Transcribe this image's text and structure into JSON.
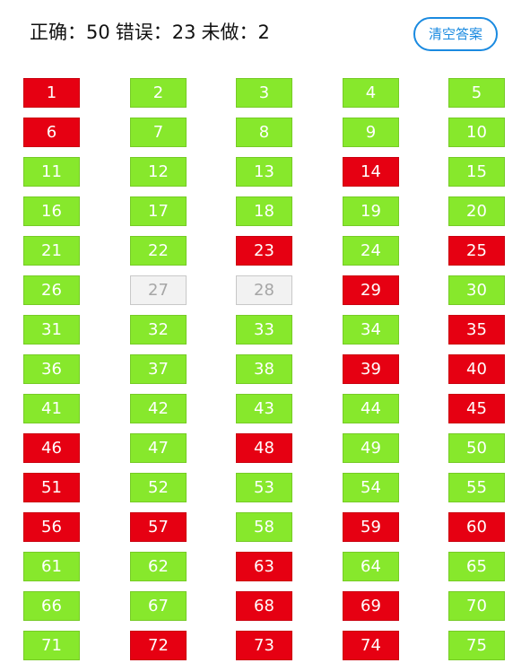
{
  "header": {
    "correct_label": "正确：",
    "correct_count": "50",
    "wrong_label": "错误：",
    "wrong_count": "23",
    "undone_label": "未做：",
    "undone_count": "2",
    "clear_button_label": "清空答案"
  },
  "colors": {
    "correct": "#87e82c",
    "wrong": "#e60012",
    "undone": "#f2f2f2",
    "accent": "#1a8ae0"
  },
  "questions": [
    {
      "num": "1",
      "status": "wrong"
    },
    {
      "num": "2",
      "status": "correct"
    },
    {
      "num": "3",
      "status": "correct"
    },
    {
      "num": "4",
      "status": "correct"
    },
    {
      "num": "5",
      "status": "correct"
    },
    {
      "num": "6",
      "status": "wrong"
    },
    {
      "num": "7",
      "status": "correct"
    },
    {
      "num": "8",
      "status": "correct"
    },
    {
      "num": "9",
      "status": "correct"
    },
    {
      "num": "10",
      "status": "correct"
    },
    {
      "num": "11",
      "status": "correct"
    },
    {
      "num": "12",
      "status": "correct"
    },
    {
      "num": "13",
      "status": "correct"
    },
    {
      "num": "14",
      "status": "wrong"
    },
    {
      "num": "15",
      "status": "correct"
    },
    {
      "num": "16",
      "status": "correct"
    },
    {
      "num": "17",
      "status": "correct"
    },
    {
      "num": "18",
      "status": "correct"
    },
    {
      "num": "19",
      "status": "correct"
    },
    {
      "num": "20",
      "status": "correct"
    },
    {
      "num": "21",
      "status": "correct"
    },
    {
      "num": "22",
      "status": "correct"
    },
    {
      "num": "23",
      "status": "wrong"
    },
    {
      "num": "24",
      "status": "correct"
    },
    {
      "num": "25",
      "status": "wrong"
    },
    {
      "num": "26",
      "status": "correct"
    },
    {
      "num": "27",
      "status": "undone"
    },
    {
      "num": "28",
      "status": "undone"
    },
    {
      "num": "29",
      "status": "wrong"
    },
    {
      "num": "30",
      "status": "correct"
    },
    {
      "num": "31",
      "status": "correct"
    },
    {
      "num": "32",
      "status": "correct"
    },
    {
      "num": "33",
      "status": "correct"
    },
    {
      "num": "34",
      "status": "correct"
    },
    {
      "num": "35",
      "status": "wrong"
    },
    {
      "num": "36",
      "status": "correct"
    },
    {
      "num": "37",
      "status": "correct"
    },
    {
      "num": "38",
      "status": "correct"
    },
    {
      "num": "39",
      "status": "wrong"
    },
    {
      "num": "40",
      "status": "wrong"
    },
    {
      "num": "41",
      "status": "correct"
    },
    {
      "num": "42",
      "status": "correct"
    },
    {
      "num": "43",
      "status": "correct"
    },
    {
      "num": "44",
      "status": "correct"
    },
    {
      "num": "45",
      "status": "wrong"
    },
    {
      "num": "46",
      "status": "wrong"
    },
    {
      "num": "47",
      "status": "correct"
    },
    {
      "num": "48",
      "status": "wrong"
    },
    {
      "num": "49",
      "status": "correct"
    },
    {
      "num": "50",
      "status": "correct"
    },
    {
      "num": "51",
      "status": "wrong"
    },
    {
      "num": "52",
      "status": "correct"
    },
    {
      "num": "53",
      "status": "correct"
    },
    {
      "num": "54",
      "status": "correct"
    },
    {
      "num": "55",
      "status": "correct"
    },
    {
      "num": "56",
      "status": "wrong"
    },
    {
      "num": "57",
      "status": "wrong"
    },
    {
      "num": "58",
      "status": "correct"
    },
    {
      "num": "59",
      "status": "wrong"
    },
    {
      "num": "60",
      "status": "wrong"
    },
    {
      "num": "61",
      "status": "correct"
    },
    {
      "num": "62",
      "status": "correct"
    },
    {
      "num": "63",
      "status": "wrong"
    },
    {
      "num": "64",
      "status": "correct"
    },
    {
      "num": "65",
      "status": "correct"
    },
    {
      "num": "66",
      "status": "correct"
    },
    {
      "num": "67",
      "status": "correct"
    },
    {
      "num": "68",
      "status": "wrong"
    },
    {
      "num": "69",
      "status": "wrong"
    },
    {
      "num": "70",
      "status": "correct"
    },
    {
      "num": "71",
      "status": "correct"
    },
    {
      "num": "72",
      "status": "wrong"
    },
    {
      "num": "73",
      "status": "wrong"
    },
    {
      "num": "74",
      "status": "wrong"
    },
    {
      "num": "75",
      "status": "correct"
    }
  ]
}
